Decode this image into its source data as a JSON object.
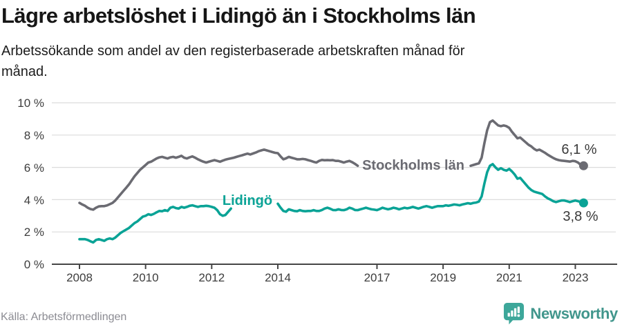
{
  "header": {
    "title": "Lägre arbetslöshet i Lidingö än i Stockholms län",
    "subtitle": "Arbetssökande som andel av den registerbaserade arbetskraften månad för månad.",
    "subtitle_lines": [
      "Arbetssökande som andel av den registerbaserade arbetskraften månad för",
      "månad."
    ]
  },
  "chart_data": {
    "type": "line",
    "title": "Lägre arbetslöshet i Lidingö än i Stockholms län",
    "unit": "%",
    "x_axis": {
      "min": 2008,
      "max": 2023.25,
      "ticks": [
        2008,
        2010,
        2012,
        2014,
        2017,
        2019,
        2021,
        2023
      ],
      "tick_labels": [
        "2008",
        "2010",
        "2012",
        "2014",
        "2017",
        "2019",
        "2021",
        "2023"
      ]
    },
    "y_axis": {
      "min": 0,
      "max": 10,
      "ticks": [
        0,
        2,
        4,
        6,
        8,
        10
      ],
      "tick_labels_desc": [
        "10 %",
        "8 %",
        "6 %",
        "4 %",
        "2 %",
        "0 %"
      ],
      "grid": true
    },
    "style": {
      "grid_color": "#dcdcdc",
      "axis_color": "#454545",
      "tick_text_color": "#3d3d3d"
    },
    "legend_position": "inline-labels",
    "series": [
      {
        "name": "Stockholms län",
        "color": "#6b6b72",
        "end_label": "6,1 %",
        "end_value": 6.1,
        "segments": [
          {
            "start_x": 2008.0,
            "step": 0.0833333,
            "values": [
              3.8,
              3.7,
              3.62,
              3.5,
              3.42,
              3.38,
              3.5,
              3.58,
              3.6,
              3.6,
              3.64,
              3.72,
              3.8,
              3.95,
              4.15,
              4.35,
              4.55,
              4.75,
              4.95,
              5.2,
              5.45,
              5.65,
              5.85,
              6.0,
              6.15,
              6.3,
              6.35,
              6.45,
              6.55,
              6.62,
              6.65,
              6.6,
              6.55,
              6.62,
              6.65,
              6.6,
              6.65,
              6.72,
              6.6,
              6.55,
              6.62,
              6.68,
              6.6,
              6.5,
              6.42,
              6.35,
              6.3,
              6.35,
              6.4,
              6.45,
              6.4,
              6.35,
              6.42,
              6.48,
              6.52,
              6.56,
              6.6,
              6.65,
              6.7,
              6.75,
              6.8,
              6.85,
              6.8,
              6.86,
              6.92,
              7.0,
              7.05,
              7.1,
              7.05,
              7.0,
              6.95,
              6.9,
              6.88,
              6.68,
              6.5,
              6.56,
              6.65,
              6.6,
              6.55,
              6.5,
              6.5,
              6.52,
              6.5,
              6.45,
              6.4,
              6.34,
              6.3,
              6.4,
              6.46,
              6.44,
              6.45,
              6.44,
              6.45,
              6.4,
              6.4,
              6.35,
              6.3,
              6.36,
              6.4,
              6.32,
              6.22,
              6.1
            ]
          },
          {
            "start_x": 2019.8333,
            "step": 0.0833333,
            "values": [
              6.1,
              6.15,
              6.2,
              6.25,
              6.6,
              7.5,
              8.3,
              8.8,
              8.9,
              8.75,
              8.6,
              8.55,
              8.6,
              8.55,
              8.45,
              8.2,
              8.0,
              7.8,
              7.85,
              7.7,
              7.55,
              7.4,
              7.3,
              7.15,
              7.05,
              7.1,
              7.0,
              6.9,
              6.78,
              6.68,
              6.58,
              6.5,
              6.45,
              6.42,
              6.4,
              6.38,
              6.36,
              6.4,
              6.38,
              6.3,
              6.15,
              6.1
            ]
          }
        ]
      },
      {
        "name": "Lidingö",
        "color": "#0aa396",
        "end_label": "3,8 %",
        "end_value": 3.8,
        "segments": [
          {
            "start_x": 2008.0,
            "step": 0.0833333,
            "values": [
              1.55,
              1.55,
              1.55,
              1.5,
              1.42,
              1.35,
              1.5,
              1.55,
              1.5,
              1.45,
              1.55,
              1.6,
              1.55,
              1.65,
              1.8,
              1.95,
              2.05,
              2.15,
              2.25,
              2.4,
              2.55,
              2.65,
              2.8,
              2.95,
              3.0,
              3.1,
              3.05,
              3.12,
              3.22,
              3.3,
              3.28,
              3.35,
              3.3,
              3.5,
              3.55,
              3.48,
              3.45,
              3.55,
              3.5,
              3.55,
              3.62,
              3.65,
              3.6,
              3.55,
              3.6,
              3.6,
              3.62,
              3.6,
              3.55,
              3.5,
              3.35,
              3.1,
              3.0,
              3.05,
              3.25,
              3.45
            ]
          },
          {
            "start_x": 2014.0,
            "step": 0.0833333,
            "values": [
              3.75,
              3.5,
              3.3,
              3.25,
              3.4,
              3.35,
              3.3,
              3.28,
              3.35,
              3.3,
              3.28,
              3.3,
              3.3,
              3.35,
              3.3,
              3.3,
              3.36,
              3.45,
              3.5,
              3.44,
              3.36,
              3.35,
              3.4,
              3.36,
              3.35,
              3.4,
              3.5,
              3.45,
              3.36,
              3.35,
              3.4,
              3.45,
              3.5,
              3.45,
              3.4,
              3.38,
              3.35,
              3.42,
              3.5,
              3.45,
              3.4,
              3.44,
              3.5,
              3.46,
              3.4,
              3.45,
              3.5,
              3.46,
              3.5,
              3.55,
              3.5,
              3.45,
              3.5,
              3.56,
              3.6,
              3.55,
              3.5,
              3.55,
              3.6,
              3.6,
              3.6,
              3.65,
              3.62,
              3.66,
              3.7,
              3.68,
              3.65,
              3.7,
              3.74,
              3.78,
              3.75,
              3.8,
              3.82,
              3.88,
              4.2,
              5.0,
              5.7,
              6.1,
              6.2,
              6.0,
              5.85,
              5.95,
              5.85,
              5.8,
              5.9,
              5.75,
              5.55,
              5.3,
              5.35,
              5.15,
              4.95,
              4.75,
              4.6,
              4.5,
              4.45,
              4.4,
              4.35,
              4.2,
              4.08,
              4.0,
              3.9,
              3.85,
              3.9,
              3.95,
              3.95,
              3.9,
              3.85,
              3.9,
              3.95,
              3.9,
              3.85,
              3.8
            ]
          }
        ]
      }
    ]
  },
  "footer": {
    "source": "Källa: Arbetsförmedlingen",
    "brand": "Newsworthy",
    "brand_color": "#41968c",
    "logo_color": "#3da79a"
  }
}
